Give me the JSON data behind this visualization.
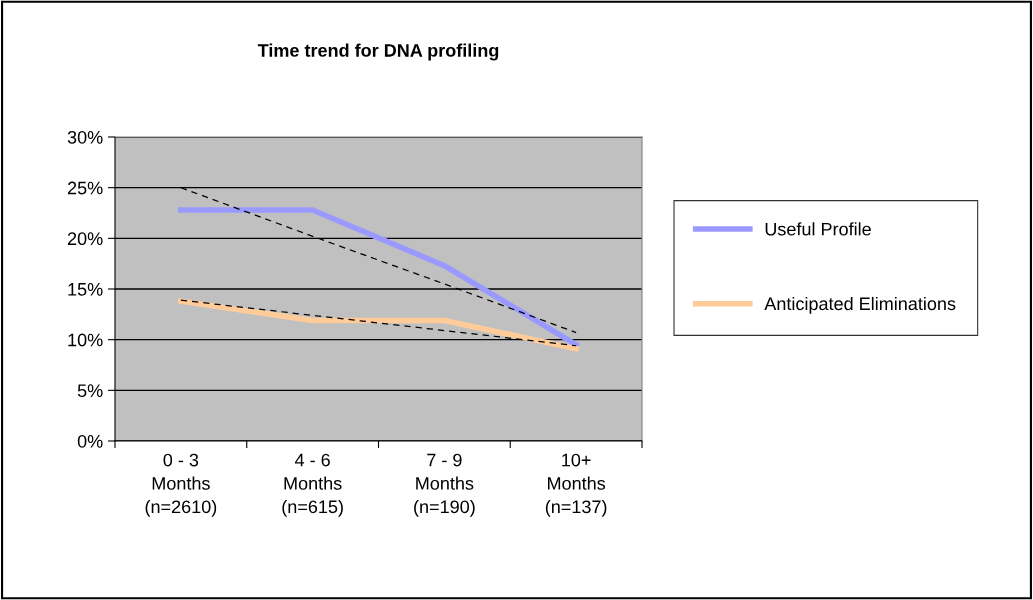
{
  "chart_data": {
    "type": "line",
    "title": "Time trend for DNA profiling",
    "categories": [
      "0 - 3\nMonths\n(n=2610)",
      "4 - 6\nMonths\n(n=615)",
      "7 - 9\nMonths\n(n=190)",
      "10+\nMonths\n(n=137)"
    ],
    "series": [
      {
        "name": "Useful Profile",
        "color": "#9999ff",
        "values": [
          22.8,
          22.8,
          17.3,
          9.5
        ]
      },
      {
        "name": "Anticipated Eliminations",
        "color": "#ffcc99",
        "values": [
          13.8,
          11.9,
          11.9,
          9.1
        ]
      },
      {
        "color": "#000000",
        "line_style": "dashed",
        "values": [
          25.0,
          20.2,
          15.5,
          10.7
        ]
      },
      {
        "color": "#000000",
        "line_style": "dashed",
        "values": [
          13.9,
          12.4,
          10.9,
          9.4
        ]
      }
    ],
    "ylim": [
      0,
      30
    ],
    "yticks": [
      {
        "value": 0,
        "label": "0%"
      },
      {
        "value": 5,
        "label": "5%"
      },
      {
        "value": 10,
        "label": "10%"
      },
      {
        "value": 15,
        "label": "15%"
      },
      {
        "value": 20,
        "label": "20%"
      },
      {
        "value": 25,
        "label": "25%"
      },
      {
        "value": 30,
        "label": "30%"
      }
    ],
    "grid": "y",
    "legend": "right",
    "marker": "none",
    "line_style": "solid"
  }
}
